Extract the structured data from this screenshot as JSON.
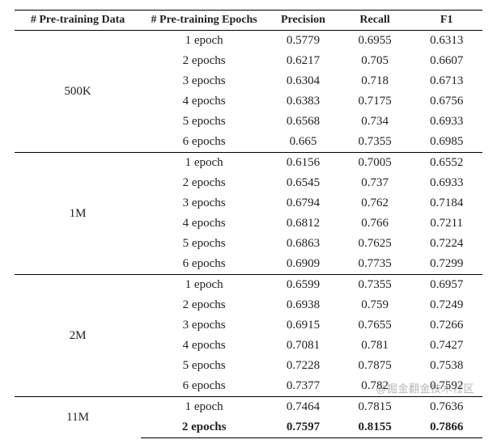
{
  "table": {
    "columns": [
      "# Pre-training Data",
      "# Pre-training Epochs",
      "Precision",
      "Recall",
      "F1"
    ],
    "col_align": [
      "center",
      "center",
      "center",
      "center",
      "center"
    ],
    "header_fontsize": 14,
    "body_fontsize": 15,
    "border_color": "#000000",
    "background_color": "#ffffff",
    "groups": [
      {
        "label": "500K",
        "rows": [
          {
            "epochs": "1 epoch",
            "precision": "0.5779",
            "recall": "0.6955",
            "f1": "0.6313"
          },
          {
            "epochs": "2 epochs",
            "precision": "0.6217",
            "recall": "0.705",
            "f1": "0.6607"
          },
          {
            "epochs": "3 epochs",
            "precision": "0.6304",
            "recall": "0.718",
            "f1": "0.6713"
          },
          {
            "epochs": "4 epochs",
            "precision": "0.6383",
            "recall": "0.7175",
            "f1": "0.6756"
          },
          {
            "epochs": "5 epochs",
            "precision": "0.6568",
            "recall": "0.734",
            "f1": "0.6933"
          },
          {
            "epochs": "6 epochs",
            "precision": "0.665",
            "recall": "0.7355",
            "f1": "0.6985"
          }
        ]
      },
      {
        "label": "1M",
        "rows": [
          {
            "epochs": "1 epoch",
            "precision": "0.6156",
            "recall": "0.7005",
            "f1": "0.6552"
          },
          {
            "epochs": "2 epochs",
            "precision": "0.6545",
            "recall": "0.737",
            "f1": "0.6933"
          },
          {
            "epochs": "3 epochs",
            "precision": "0.6794",
            "recall": "0.762",
            "f1": "0.7184"
          },
          {
            "epochs": "4 epochs",
            "precision": "0.6812",
            "recall": "0.766",
            "f1": "0.7211"
          },
          {
            "epochs": "5 epochs",
            "precision": "0.6863",
            "recall": "0.7625",
            "f1": "0.7224"
          },
          {
            "epochs": "6 epochs",
            "precision": "0.6909",
            "recall": "0.7735",
            "f1": "0.7299"
          }
        ]
      },
      {
        "label": "2M",
        "rows": [
          {
            "epochs": "1 epoch",
            "precision": "0.6599",
            "recall": "0.7355",
            "f1": "0.6957"
          },
          {
            "epochs": "2 epochs",
            "precision": "0.6938",
            "recall": "0.759",
            "f1": "0.7249"
          },
          {
            "epochs": "3 epochs",
            "precision": "0.6915",
            "recall": "0.7655",
            "f1": "0.7266"
          },
          {
            "epochs": "4 epochs",
            "precision": "0.7081",
            "recall": "0.781",
            "f1": "0.7427"
          },
          {
            "epochs": "5 epochs",
            "precision": "0.7228",
            "recall": "0.7875",
            "f1": "0.7538"
          },
          {
            "epochs": "6 epochs",
            "precision": "0.7377",
            "recall": "0.782",
            "f1": "0.7592"
          }
        ]
      },
      {
        "label": "11M",
        "rows": [
          {
            "epochs": "1 epoch",
            "precision": "0.7464",
            "recall": "0.7815",
            "f1": "0.7636"
          },
          {
            "epochs": "2 epochs",
            "precision": "0.7597",
            "recall": "0.8155",
            "f1": "0.7866",
            "bold": true
          }
        ]
      }
    ]
  },
  "watermark": "@掘金翻金技术社区"
}
